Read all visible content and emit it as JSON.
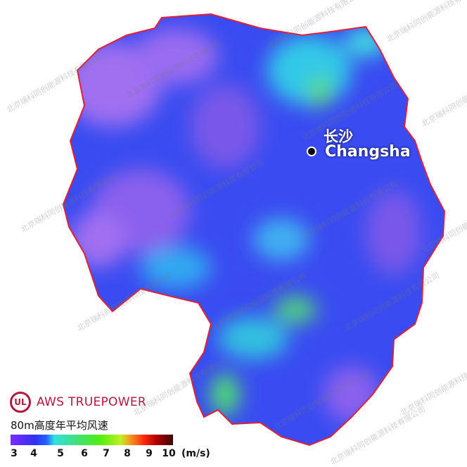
{
  "map": {
    "city": {
      "name_cn": "长沙",
      "name_en": "Changsha"
    },
    "legend": {
      "brand": "AWS TRUEPOWER",
      "logo_text": "UL",
      "title": "80m高度年平均风速",
      "ticks": [
        "3",
        "4",
        "5",
        "6",
        "7",
        "8",
        "9",
        "10"
      ],
      "unit": "(m/s)",
      "range": [
        3,
        10
      ],
      "colors": [
        "#7b2cff",
        "#3030f0",
        "#30e0e0",
        "#50ee10",
        "#f0a020",
        "#ff2a10",
        "#3a0a00"
      ]
    },
    "watermark": "北京瑞科同创能源科技有限公司",
    "colors": {
      "boundary": "#e0203a",
      "base": "#3a4cf0"
    }
  }
}
